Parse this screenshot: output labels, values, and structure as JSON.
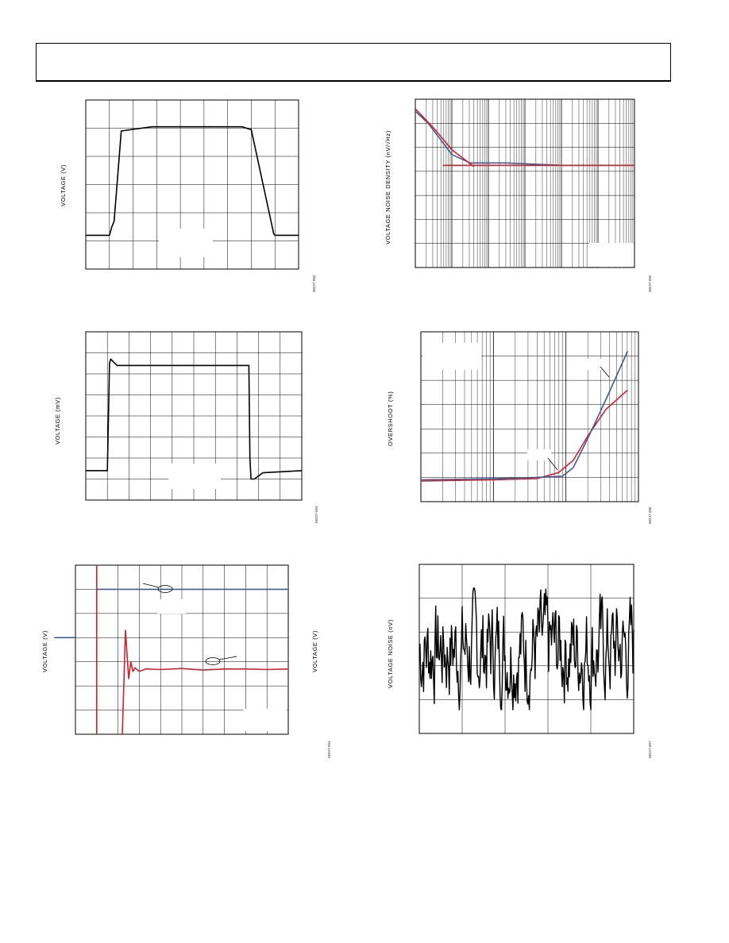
{
  "page": {
    "header_box": true
  },
  "colors": {
    "trace_black": "#000000",
    "trace_red": "#d41f2e",
    "trace_blue": "#3d5d94",
    "grid": "#000000"
  },
  "figures": [
    {
      "ylabel": "VOLTAGE (V)",
      "code": "08237-002"
    },
    {
      "ylabel": "VOLTAGE NOISE DENSITY (nV/√Hz)",
      "code": "08237-005"
    },
    {
      "ylabel": "VOLTAGE (mV)",
      "code": "08237-003"
    },
    {
      "ylabel": "OVERSHOOT (%)",
      "code": "08237-006"
    },
    {
      "ylabel": "VOLTAGE (V)",
      "ylabel_right": "VOLTAGE (V)",
      "code": "08237-004"
    },
    {
      "ylabel": "VOLTAGE NOISE (nV)",
      "code": "08237-007"
    }
  ],
  "chart_data": [
    {
      "type": "line",
      "title": "",
      "xlabel": "",
      "ylabel": "VOLTAGE (V)",
      "x_divisions": 9,
      "y_divisions": 6,
      "grid": true,
      "x_unit": "div",
      "series": [
        {
          "color": "black",
          "x": [
            0,
            1,
            1.05,
            1.1,
            1.2,
            1.5,
            2.8,
            5.0,
            6.6,
            7.0,
            7.95,
            8.0,
            9.0
          ],
          "y": [
            1.2,
            1.2,
            1.35,
            1.5,
            1.7,
            4.9,
            5.05,
            5.05,
            5.05,
            4.95,
            1.25,
            1.2,
            1.2
          ]
        }
      ]
    },
    {
      "type": "line",
      "title": "",
      "xlabel": "",
      "ylabel": "VOLTAGE NOISE DENSITY (nV/√Hz)",
      "x_scale": "log",
      "x_decades": 6,
      "y_divisions": 7,
      "grid": true,
      "series": [
        {
          "color": "blue",
          "x": [
            0,
            0.35,
            0.75,
            1.0,
            1.5,
            2.5,
            4,
            6
          ],
          "y": [
            6.5,
            6.0,
            5.2,
            4.7,
            4.35,
            4.35,
            4.25,
            4.25
          ]
        },
        {
          "color": "red",
          "x": [
            0,
            0.5,
            1.0,
            1.6
          ],
          "y": [
            6.6,
            5.8,
            4.9,
            4.2
          ]
        },
        {
          "color": "red",
          "x": [
            0.75,
            6.0
          ],
          "y": [
            4.25,
            4.25
          ]
        }
      ]
    },
    {
      "type": "line",
      "title": "",
      "xlabel": "",
      "ylabel": "VOLTAGE (mV)",
      "x_divisions": 10,
      "y_divisions": 8,
      "grid": true,
      "x_unit": "div",
      "series": [
        {
          "color": "black",
          "x": [
            0,
            1.0,
            1.05,
            1.1,
            1.15,
            1.25,
            1.45,
            1.7,
            4.0,
            7.0,
            7.55,
            7.6,
            7.65,
            7.8,
            8.2,
            10.0
          ],
          "y": [
            1.4,
            1.4,
            4.0,
            6.5,
            6.7,
            6.6,
            6.4,
            6.4,
            6.4,
            6.4,
            6.4,
            2.0,
            1.0,
            1.0,
            1.3,
            1.4
          ]
        }
      ]
    },
    {
      "type": "line",
      "title": "",
      "xlabel": "",
      "ylabel": "OVERSHOOT (%)",
      "x_scale": "log",
      "x_decades": 3,
      "y_divisions": 7,
      "grid": true,
      "series": [
        {
          "color": "red",
          "x": [
            0,
            1.0,
            1.6,
            1.9,
            2.1,
            2.3,
            2.55,
            2.85
          ],
          "y": [
            0.85,
            0.9,
            0.95,
            1.2,
            1.7,
            2.7,
            3.8,
            4.6
          ]
        },
        {
          "color": "blue",
          "x": [
            0,
            1.0,
            1.6,
            1.95,
            2.1,
            2.3,
            2.55,
            2.85
          ],
          "y": [
            0.9,
            0.95,
            1.0,
            1.05,
            1.4,
            2.6,
            4.2,
            6.2
          ]
        }
      ]
    },
    {
      "type": "line",
      "title": "",
      "xlabel": "",
      "ylabel": "VOLTAGE (V)",
      "x_divisions": 10,
      "y_divisions": 7,
      "grid": true,
      "x_unit": "div",
      "series": [
        {
          "color": "blue",
          "x": [
            -1,
            0
          ],
          "y": [
            4.0,
            4.0
          ]
        },
        {
          "color": "blue",
          "x": [
            1,
            10
          ],
          "y": [
            6.0,
            6.0
          ]
        },
        {
          "color": "red",
          "x": [
            1,
            1
          ],
          "y": [
            7.0,
            0
          ]
        },
        {
          "color": "red",
          "x": [
            2.2,
            2.35,
            2.5,
            2.6,
            2.7,
            2.8,
            3.0,
            3.3,
            4,
            5,
            6,
            7,
            8,
            9,
            10
          ],
          "y": [
            0,
            4.3,
            2.3,
            3.0,
            2.6,
            2.75,
            2.6,
            2.7,
            2.68,
            2.72,
            2.66,
            2.7,
            2.7,
            2.68,
            2.7
          ]
        }
      ]
    },
    {
      "type": "line",
      "title": "",
      "xlabel": "",
      "ylabel": "VOLTAGE NOISE (nV)",
      "x_divisions": 5,
      "y_divisions": 5,
      "grid": true,
      "x_unit": "div",
      "series": [
        {
          "color": "black",
          "description": "random 0.1 Hz to 10 Hz noise trace",
          "y_center": 2.5,
          "y_spread": 1.8
        }
      ]
    }
  ]
}
